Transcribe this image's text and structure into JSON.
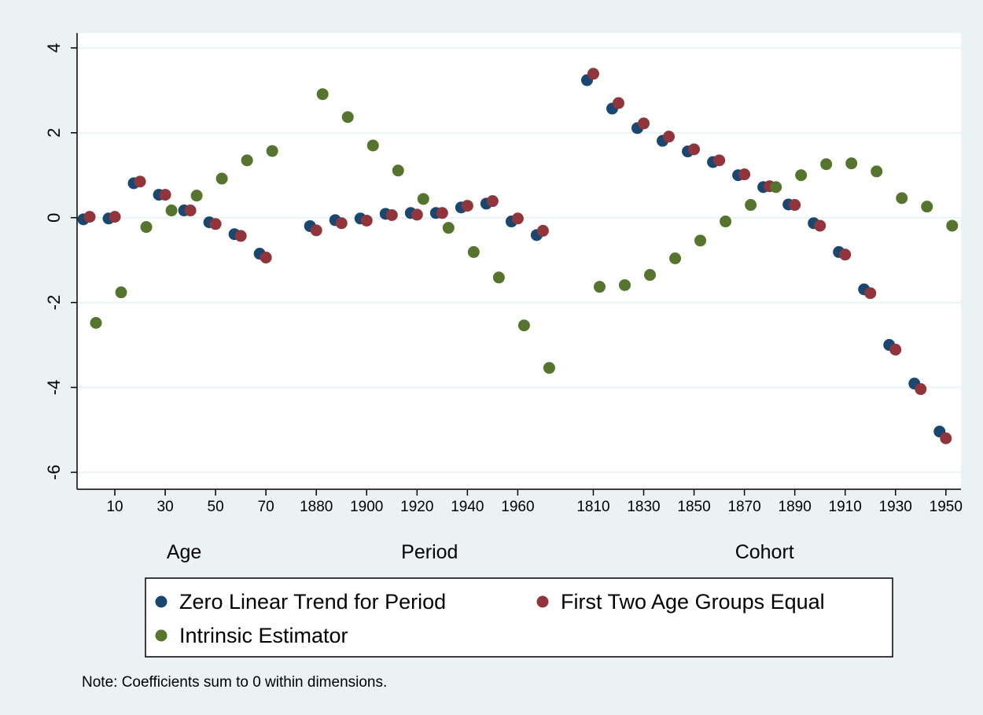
{
  "chart_data": {
    "type": "scatter",
    "series": [
      {
        "name": "Zero Linear Trend for Period",
        "color": "#1a476f"
      },
      {
        "name": "First Two Age Groups Equal",
        "color": "#90353b"
      },
      {
        "name": "Intrinsic Estimator",
        "color": "#55752f"
      }
    ],
    "panels": [
      {
        "label": "Age",
        "x": [
          0,
          10,
          20,
          30,
          40,
          50,
          60,
          70
        ],
        "xlim": [
          -5,
          80
        ],
        "xticks": [
          10,
          30,
          50,
          70
        ],
        "values": [
          [
            -0.04,
            -0.02,
            0.81,
            0.54,
            0.17,
            -0.11,
            -0.39,
            -0.85
          ],
          [
            0.02,
            0.02,
            0.85,
            0.54,
            0.17,
            -0.15,
            -0.43,
            -0.94
          ],
          [
            -2.48,
            -1.76,
            -0.22,
            0.17,
            0.52,
            0.92,
            1.35,
            1.57
          ]
        ]
      },
      {
        "label": "Period",
        "x": [
          1880,
          1890,
          1900,
          1910,
          1920,
          1930,
          1940,
          1950,
          1960,
          1970
        ],
        "xlim": [
          1870,
          1980
        ],
        "xticks": [
          1880,
          1900,
          1920,
          1940,
          1960
        ],
        "values": [
          [
            -0.2,
            -0.06,
            -0.02,
            0.09,
            0.11,
            0.11,
            0.24,
            0.33,
            -0.09,
            -0.41
          ],
          [
            -0.3,
            -0.13,
            -0.07,
            0.06,
            0.07,
            0.11,
            0.28,
            0.39,
            -0.02,
            -0.31
          ],
          [
            2.91,
            2.37,
            1.7,
            1.11,
            0.44,
            -0.24,
            -0.81,
            -1.41,
            -2.54,
            -3.54
          ]
        ]
      },
      {
        "label": "Cohort",
        "x": [
          1810,
          1820,
          1830,
          1840,
          1850,
          1860,
          1870,
          1880,
          1890,
          1900,
          1910,
          1920,
          1930,
          1940,
          1950
        ],
        "xlim": [
          1800,
          1956
        ],
        "xticks": [
          1810,
          1830,
          1850,
          1870,
          1890,
          1910,
          1930,
          1950
        ],
        "values": [
          [
            3.24,
            2.57,
            2.11,
            1.81,
            1.56,
            1.31,
            1.0,
            0.72,
            0.31,
            -0.13,
            -0.81,
            -1.69,
            -3.0,
            -3.91,
            -5.04
          ],
          [
            3.39,
            2.7,
            2.22,
            1.91,
            1.61,
            1.35,
            1.02,
            0.74,
            0.3,
            -0.19,
            -0.87,
            -1.78,
            -3.11,
            -4.04,
            -5.2
          ],
          [
            -1.63,
            -1.59,
            -1.35,
            -0.96,
            -0.54,
            -0.09,
            0.3,
            0.72,
            1.0,
            1.26,
            1.28,
            1.09,
            0.46,
            0.26,
            -0.19
          ]
        ]
      }
    ],
    "ylim": [
      -6.4,
      4.35
    ],
    "yticks": [
      -6,
      -4,
      -2,
      0,
      2,
      4
    ],
    "grid": true,
    "note": "Note: Coefficients sum to 0 within dimensions."
  }
}
